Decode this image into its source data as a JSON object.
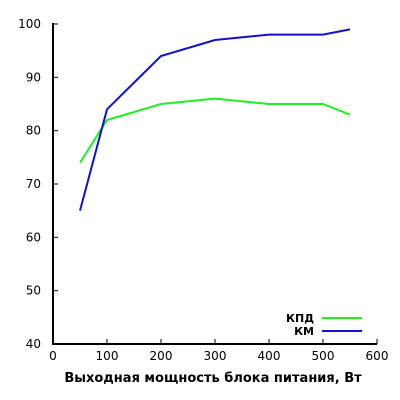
{
  "chart_data": {
    "type": "line",
    "title": "",
    "xlabel": "Выходная мощность блока питания, Вт",
    "ylabel": "",
    "xlim": [
      0,
      600
    ],
    "ylim": [
      40,
      100
    ],
    "x_ticks": [
      0,
      100,
      200,
      300,
      400,
      500,
      600
    ],
    "y_ticks": [
      40,
      50,
      60,
      70,
      80,
      90,
      100
    ],
    "grid": false,
    "legend_position": "bottom-right",
    "series": [
      {
        "name": "КПД",
        "color": "#22ee22",
        "points": [
          [
            50,
            74
          ],
          [
            100,
            82
          ],
          [
            200,
            85
          ],
          [
            300,
            86
          ],
          [
            400,
            85
          ],
          [
            500,
            85
          ],
          [
            550,
            83
          ]
        ]
      },
      {
        "name": "КМ",
        "color": "#1111cc",
        "points": [
          [
            50,
            65
          ],
          [
            100,
            84
          ],
          [
            200,
            94
          ],
          [
            300,
            97
          ],
          [
            400,
            98
          ],
          [
            500,
            98
          ],
          [
            550,
            99
          ]
        ]
      }
    ]
  }
}
